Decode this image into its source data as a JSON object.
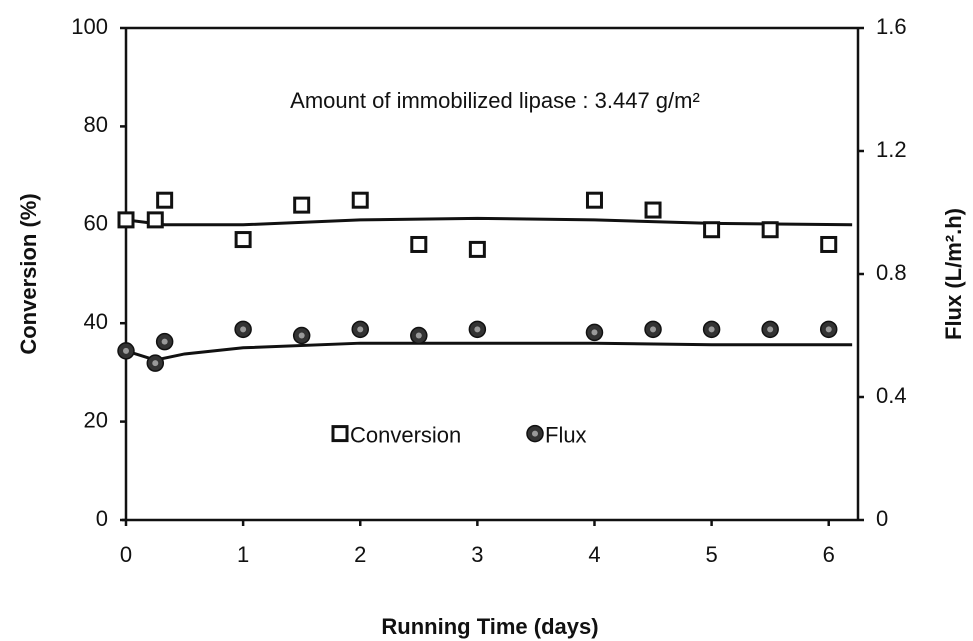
{
  "chart_data": {
    "type": "scatter",
    "annotation": "Amount of immobilized lipase : 3.447 g/m²",
    "xlabel": "Running Time (days)",
    "ylabel": "Conversion (%)",
    "y2label": "Flux (L/m².h)",
    "xlim": [
      0,
      6.25
    ],
    "xticks": [
      0,
      1,
      2,
      3,
      4,
      5,
      6
    ],
    "ylim": [
      0,
      100
    ],
    "yticks": [
      0,
      20,
      40,
      60,
      80,
      100
    ],
    "y2lim": [
      0,
      1.6
    ],
    "y2ticks": [
      0,
      0.4,
      0.8,
      1.2,
      1.6
    ],
    "legend": "lower center",
    "series": [
      {
        "name": "Conversion",
        "marker": "square",
        "color": "#111111",
        "axis": "y",
        "x": [
          0,
          0.25,
          0.33,
          1,
          1.5,
          2,
          2.5,
          3,
          4,
          4.5,
          5,
          5.5,
          6
        ],
        "values": [
          61,
          61,
          65,
          57,
          64,
          65,
          56,
          55,
          65,
          63,
          59,
          59,
          56
        ]
      },
      {
        "name": "Flux",
        "marker": "circle",
        "color": "#333333",
        "axis": "y2",
        "x": [
          0,
          0.25,
          0.33,
          1,
          1.5,
          2,
          2.5,
          3,
          4,
          4.5,
          5,
          5.5,
          6
        ],
        "values": [
          0.55,
          0.51,
          0.58,
          0.62,
          0.6,
          0.62,
          0.6,
          0.62,
          0.61,
          0.62,
          0.62,
          0.62,
          0.62
        ]
      }
    ],
    "fits": [
      {
        "axis": "y",
        "x": [
          0,
          0.33,
          1,
          2,
          3,
          4,
          5,
          6.2
        ],
        "values": [
          61,
          60,
          60,
          61,
          61.3,
          61,
          60.3,
          60
        ]
      },
      {
        "axis": "y2",
        "x": [
          0,
          0.25,
          0.5,
          1,
          2,
          3,
          4,
          5,
          6.2
        ],
        "values": [
          0.55,
          0.52,
          0.54,
          0.56,
          0.575,
          0.575,
          0.575,
          0.57,
          0.57
        ]
      }
    ]
  }
}
